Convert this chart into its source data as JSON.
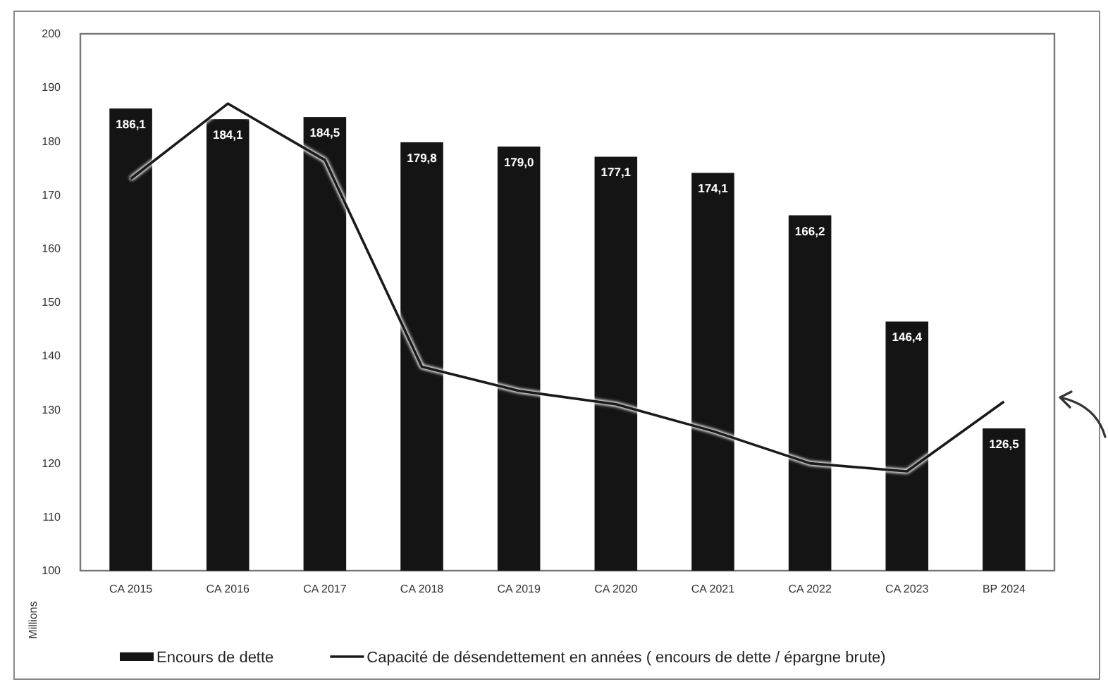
{
  "chart_data": {
    "type": "bar",
    "ylabel": "Millions",
    "categories": [
      "CA 2015",
      "CA 2016",
      "CA 2017",
      "CA 2018",
      "CA 2019",
      "CA 2020",
      "CA 2021",
      "CA 2022",
      "CA 2023",
      "BP 2024"
    ],
    "series": [
      {
        "name": "Encours de dette",
        "color": "#141414",
        "values": [
          186.1,
          184.1,
          184.5,
          179.8,
          179.0,
          177.1,
          174.1,
          166.2,
          146.4,
          126.5
        ],
        "value_labels": [
          "186,1",
          "184,1",
          "184,5",
          "179,8",
          "179,0",
          "177,1",
          "174,1",
          "166,2",
          "146,4",
          "126,5"
        ]
      },
      {
        "name": "Capacité de désendettement en années ( encours de dette / épargne brute)",
        "type": "line",
        "color": "#1a1a1a",
        "values": [
          173,
          187,
          176.5,
          138,
          133.5,
          131,
          126,
          120,
          118.5,
          131.5
        ]
      }
    ],
    "ylim": [
      100,
      200
    ],
    "yticks": [
      100,
      110,
      120,
      130,
      140,
      150,
      160,
      170,
      180,
      190,
      200
    ],
    "grid": false,
    "legend": "bottom",
    "marker": "none",
    "line_style": "solid"
  }
}
